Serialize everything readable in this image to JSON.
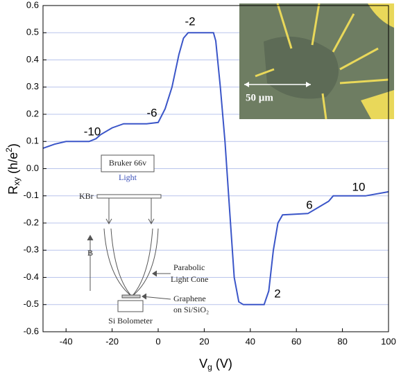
{
  "chart_data": {
    "type": "line",
    "xlabel": {
      "main": "V",
      "sub": "g",
      "rest": " (V)"
    },
    "ylabel": {
      "main": "R",
      "sub": "xy",
      "rest": " (h/e",
      "sup": "2",
      "end": ")"
    },
    "x": [
      -50,
      -45,
      -40,
      -30,
      -27,
      -25,
      -20,
      -15,
      -5,
      0,
      3,
      6,
      9,
      11,
      13,
      24,
      25,
      27,
      29,
      31,
      33,
      35,
      37,
      46,
      48,
      50,
      52,
      54,
      65,
      70,
      74,
      76,
      90,
      100
    ],
    "values": [
      0.075,
      0.09,
      0.1,
      0.1,
      0.11,
      0.125,
      0.15,
      0.165,
      0.165,
      0.17,
      0.22,
      0.3,
      0.42,
      0.48,
      0.5,
      0.5,
      0.47,
      0.3,
      0.1,
      -0.15,
      -0.4,
      -0.49,
      -0.5,
      -0.5,
      -0.45,
      -0.3,
      -0.2,
      -0.17,
      -0.165,
      -0.14,
      -0.12,
      -0.1,
      -0.1,
      -0.085
    ],
    "color": "#3a55c8",
    "xlim": [
      -50,
      100
    ],
    "xticks": [
      -40,
      -20,
      0,
      20,
      40,
      60,
      80,
      100
    ],
    "ylim": [
      -0.6,
      0.6
    ],
    "yticks": [
      -0.6,
      -0.5,
      -0.4,
      -0.3,
      -0.2,
      -0.1,
      {
        "value": 0,
        "label": "0.0"
      },
      0.1,
      0.2,
      0.3,
      0.4,
      0.5,
      0.6
    ],
    "grid": true,
    "annotations": [
      "-10",
      "-6",
      "-2",
      "2",
      "6",
      "10"
    ],
    "micrograph_label": "50 µm",
    "diagram": {
      "source": "Bruker 66v",
      "light": "Light",
      "window": "KBr",
      "field": "B",
      "cone": [
        "Parabolic",
        "Light Cone"
      ],
      "sample": [
        "Graphene",
        "on Si/SiO₂"
      ],
      "detector": "Si Bolometer"
    }
  }
}
